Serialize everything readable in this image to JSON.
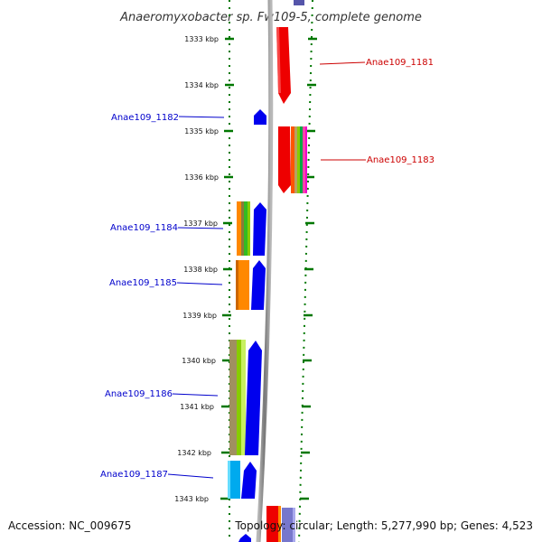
{
  "title": "Anaeromyxobacter sp. Fw109-5, complete genome",
  "footer": {
    "accession": "Accession: NC_009675",
    "summary": "Topology: circular; Length: 5,277,990 bp; Genes: 4,523"
  },
  "ruler": {
    "labels": [
      "1333 kbp",
      "1334 kbp",
      "1335 kbp",
      "1336 kbp",
      "1337 kbp",
      "1338 kbp",
      "1339 kbp",
      "1340 kbp",
      "1341 kbp",
      "1342 kbp",
      "1343 kbp"
    ]
  },
  "genes": {
    "left": [
      {
        "label": "Anae109_1182",
        "strand": "forward",
        "color": "#0000ee"
      },
      {
        "label": "Anae109_1184",
        "strand": "forward",
        "color": "#0000ee"
      },
      {
        "label": "Anae109_1185",
        "strand": "forward",
        "color": "#0000ee"
      },
      {
        "label": "Anae109_1186",
        "strand": "forward",
        "color": "#0000ee"
      },
      {
        "label": "Anae109_1187",
        "strand": "forward",
        "color": "#0000ee"
      }
    ],
    "right": [
      {
        "label": "Anae109_1181",
        "strand": "reverse",
        "color": "#ee0000"
      },
      {
        "label": "Anae109_1183",
        "strand": "reverse",
        "color": "#ee0000"
      }
    ]
  },
  "colors": {
    "forward_gene": "#0000ee",
    "reverse_gene": "#ee0000",
    "backbone": "#888888",
    "ruler_dots": "#007700",
    "left_label": "#0000cc",
    "right_label": "#cc0000"
  }
}
